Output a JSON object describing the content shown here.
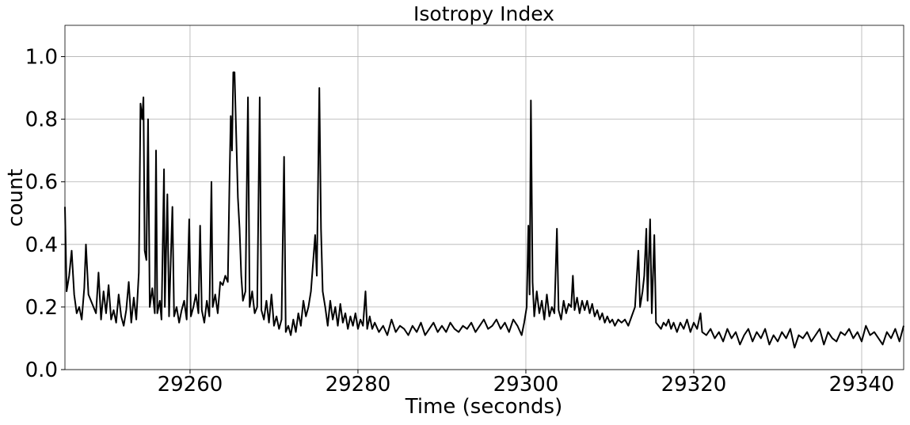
{
  "chart_data": {
    "type": "line",
    "title": "Isotropy Index",
    "x_label": "Time (seconds)",
    "y_label": "count",
    "xlim": [
      29245.1,
      29345
    ],
    "ylim": [
      0,
      1.1
    ],
    "xticks": [
      29260,
      29280,
      29300,
      29320,
      29340
    ],
    "yticks": [
      {
        "value": 0,
        "label": "0.0"
      },
      0.2,
      0.4,
      0.6,
      0.8,
      {
        "value": 1,
        "label": "1.0"
      }
    ],
    "grid": true,
    "x": [
      29245.1,
      29245.3,
      29245.6,
      29245.9,
      29246.2,
      29246.5,
      29246.8,
      29247.1,
      29247.4,
      29247.6,
      29247.9,
      29248.2,
      29248.5,
      29248.8,
      29249.1,
      29249.4,
      29249.7,
      29250.0,
      29250.3,
      29250.6,
      29250.9,
      29251.2,
      29251.5,
      29251.8,
      29252.1,
      29252.4,
      29252.7,
      29253.0,
      29253.3,
      29253.6,
      29253.9,
      29254.1,
      29254.3,
      29254.45,
      29254.6,
      29254.8,
      29255.0,
      29255.2,
      29255.5,
      29255.8,
      29255.95,
      29256.1,
      29256.4,
      29256.6,
      29256.9,
      29257.0,
      29257.3,
      29257.5,
      29257.9,
      29258.1,
      29258.4,
      29258.7,
      29259.0,
      29259.3,
      29259.6,
      29259.9,
      29260.1,
      29260.4,
      29260.7,
      29261.0,
      29261.2,
      29261.4,
      29261.7,
      29262.0,
      29262.3,
      29262.55,
      29262.7,
      29263.0,
      29263.3,
      29263.6,
      29263.9,
      29264.2,
      29264.5,
      29264.7,
      29264.85,
      29265.0,
      29265.15,
      29265.3,
      29265.5,
      29265.7,
      29265.9,
      29266.1,
      29266.3,
      29266.6,
      29266.9,
      29267.1,
      29267.4,
      29267.7,
      29268.0,
      29268.3,
      29268.5,
      29268.8,
      29269.1,
      29269.4,
      29269.7,
      29270.0,
      29270.3,
      29270.6,
      29270.9,
      29271.2,
      29271.4,
      29271.7,
      29272.0,
      29272.3,
      29272.6,
      29272.9,
      29273.2,
      29273.5,
      29273.8,
      29274.1,
      29274.4,
      29274.9,
      29275.1,
      29275.4,
      29275.6,
      29275.8,
      29276.1,
      29276.4,
      29276.7,
      29277.0,
      29277.3,
      29277.6,
      29277.9,
      29278.2,
      29278.5,
      29278.8,
      29279.1,
      29279.4,
      29279.7,
      29280.0,
      29280.3,
      29280.6,
      29280.9,
      29281.1,
      29281.4,
      29281.7,
      29282.0,
      29282.5,
      29283.0,
      29283.5,
      29284.0,
      29284.5,
      29285.0,
      29285.5,
      29286.0,
      29286.5,
      29287.0,
      29287.5,
      29288.0,
      29288.5,
      29289.0,
      29289.5,
      29290.0,
      29290.5,
      29291.0,
      29291.5,
      29292.0,
      29292.5,
      29293.0,
      29293.5,
      29294.0,
      29294.5,
      29295.0,
      29295.5,
      29296.0,
      29296.5,
      29297.0,
      29297.5,
      29298.0,
      29298.5,
      29299.0,
      29299.5,
      29299.8,
      29300.1,
      29300.3,
      29300.45,
      29300.6,
      29300.8,
      29301.0,
      29301.3,
      29301.6,
      29301.9,
      29302.2,
      29302.5,
      29302.8,
      29303.1,
      29303.4,
      29303.7,
      29303.9,
      29304.2,
      29304.5,
      29304.8,
      29305.1,
      29305.4,
      29305.6,
      29305.8,
      29306.1,
      29306.4,
      29306.7,
      29307.0,
      29307.3,
      29307.6,
      29307.9,
      29308.2,
      29308.5,
      29308.8,
      29309.1,
      29309.4,
      29309.7,
      29310.0,
      29310.3,
      29310.6,
      29311.0,
      29311.4,
      29311.8,
      29312.2,
      29312.6,
      29313.0,
      29313.4,
      29313.6,
      29313.9,
      29314.1,
      29314.35,
      29314.5,
      29314.8,
      29315.0,
      29315.3,
      29315.5,
      29315.8,
      29316.1,
      29316.4,
      29316.7,
      29317.0,
      29317.3,
      29317.6,
      29318.0,
      29318.4,
      29318.8,
      29319.2,
      29319.6,
      29320.0,
      29320.4,
      29320.8,
      29321.0,
      29321.5,
      29322.0,
      29322.5,
      29323.0,
      29323.5,
      29324.0,
      29324.5,
      29325.0,
      29325.5,
      29326.0,
      29326.5,
      29327.0,
      29327.5,
      29328.0,
      29328.5,
      29329.0,
      29329.5,
      29330.0,
      29330.5,
      29331.0,
      29331.5,
      29332.0,
      29332.5,
      29333.0,
      29333.5,
      29334.0,
      29334.5,
      29335.0,
      29335.5,
      29336.0,
      29336.5,
      29337.0,
      29337.5,
      29338.0,
      29338.5,
      29339.0,
      29339.5,
      29340.0,
      29340.5,
      29341.0,
      29341.5,
      29342.0,
      29342.5,
      29343.0,
      29343.5,
      29344.0,
      29344.5,
      29345.0
    ],
    "series": [
      {
        "name": "count",
        "color": "#000000",
        "values": [
          0.52,
          0.25,
          0.3,
          0.38,
          0.24,
          0.18,
          0.2,
          0.16,
          0.26,
          0.4,
          0.24,
          0.22,
          0.2,
          0.18,
          0.31,
          0.16,
          0.25,
          0.18,
          0.27,
          0.16,
          0.19,
          0.15,
          0.24,
          0.17,
          0.14,
          0.19,
          0.28,
          0.15,
          0.23,
          0.16,
          0.31,
          0.85,
          0.8,
          0.87,
          0.38,
          0.35,
          0.8,
          0.2,
          0.26,
          0.18,
          0.7,
          0.18,
          0.22,
          0.16,
          0.64,
          0.2,
          0.56,
          0.17,
          0.52,
          0.17,
          0.2,
          0.15,
          0.19,
          0.22,
          0.16,
          0.48,
          0.17,
          0.2,
          0.24,
          0.18,
          0.46,
          0.19,
          0.15,
          0.22,
          0.17,
          0.6,
          0.2,
          0.24,
          0.18,
          0.28,
          0.27,
          0.3,
          0.28,
          0.6,
          0.81,
          0.7,
          0.95,
          0.95,
          0.75,
          0.55,
          0.45,
          0.3,
          0.22,
          0.25,
          0.87,
          0.2,
          0.25,
          0.18,
          0.2,
          0.87,
          0.19,
          0.16,
          0.22,
          0.15,
          0.24,
          0.14,
          0.17,
          0.13,
          0.16,
          0.68,
          0.12,
          0.14,
          0.11,
          0.16,
          0.12,
          0.18,
          0.14,
          0.22,
          0.17,
          0.2,
          0.25,
          0.43,
          0.3,
          0.9,
          0.45,
          0.25,
          0.2,
          0.14,
          0.22,
          0.16,
          0.2,
          0.14,
          0.21,
          0.15,
          0.18,
          0.13,
          0.17,
          0.14,
          0.18,
          0.13,
          0.16,
          0.14,
          0.25,
          0.13,
          0.17,
          0.13,
          0.15,
          0.12,
          0.14,
          0.11,
          0.16,
          0.12,
          0.14,
          0.13,
          0.11,
          0.14,
          0.12,
          0.15,
          0.11,
          0.13,
          0.15,
          0.12,
          0.14,
          0.12,
          0.15,
          0.13,
          0.12,
          0.14,
          0.13,
          0.15,
          0.12,
          0.14,
          0.16,
          0.13,
          0.14,
          0.16,
          0.13,
          0.15,
          0.12,
          0.16,
          0.14,
          0.11,
          0.15,
          0.2,
          0.46,
          0.24,
          0.86,
          0.28,
          0.17,
          0.25,
          0.18,
          0.22,
          0.16,
          0.24,
          0.17,
          0.2,
          0.18,
          0.45,
          0.19,
          0.16,
          0.22,
          0.18,
          0.21,
          0.2,
          0.3,
          0.19,
          0.23,
          0.18,
          0.22,
          0.19,
          0.22,
          0.18,
          0.21,
          0.17,
          0.19,
          0.16,
          0.18,
          0.15,
          0.17,
          0.15,
          0.16,
          0.14,
          0.16,
          0.15,
          0.16,
          0.14,
          0.17,
          0.2,
          0.38,
          0.2,
          0.25,
          0.3,
          0.45,
          0.22,
          0.48,
          0.18,
          0.43,
          0.15,
          0.14,
          0.13,
          0.15,
          0.14,
          0.16,
          0.13,
          0.15,
          0.12,
          0.15,
          0.13,
          0.16,
          0.12,
          0.15,
          0.13,
          0.18,
          0.12,
          0.11,
          0.13,
          0.1,
          0.12,
          0.09,
          0.13,
          0.1,
          0.12,
          0.08,
          0.11,
          0.13,
          0.09,
          0.12,
          0.1,
          0.13,
          0.08,
          0.11,
          0.09,
          0.12,
          0.1,
          0.13,
          0.07,
          0.11,
          0.1,
          0.12,
          0.09,
          0.11,
          0.13,
          0.08,
          0.12,
          0.1,
          0.09,
          0.12,
          0.11,
          0.13,
          0.1,
          0.12,
          0.09,
          0.14,
          0.11,
          0.12,
          0.1,
          0.08,
          0.12,
          0.1,
          0.13,
          0.09,
          0.14
        ]
      }
    ]
  }
}
